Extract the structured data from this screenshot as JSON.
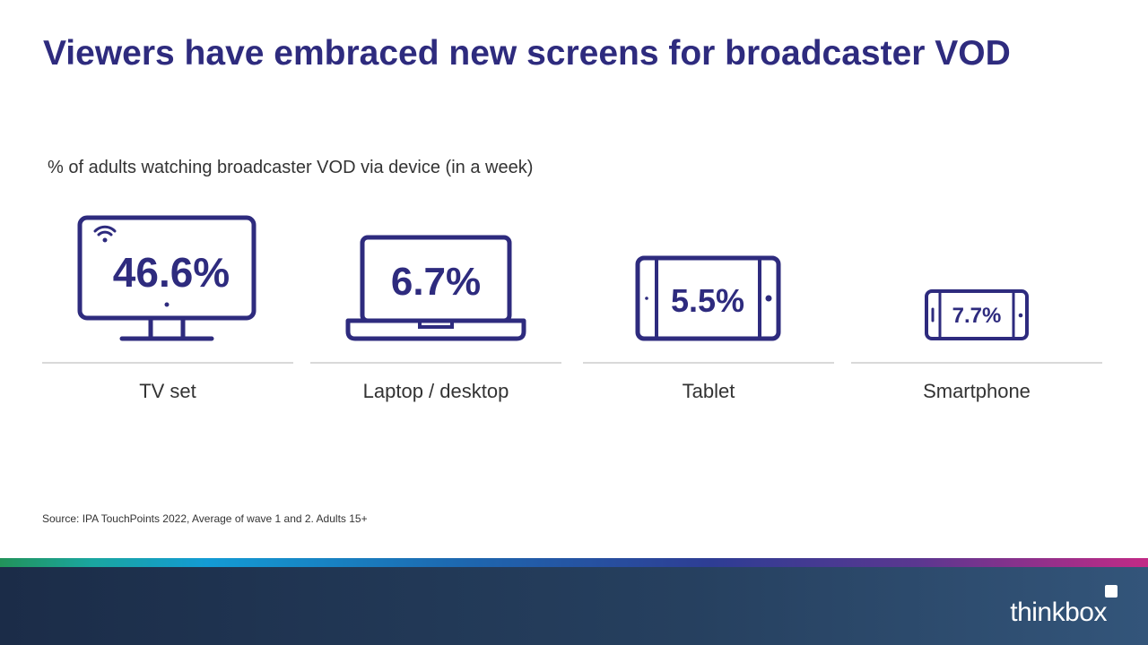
{
  "title": "Viewers have embraced new screens for broadcaster VOD",
  "subtitle": "% of adults watching broadcaster VOD via device (in a week)",
  "source": "Source: IPA TouchPoints 2022, Average of wave 1 and 2. Adults 15+",
  "logo": "thinkbox",
  "colors": {
    "accent": "#2e2b7e",
    "footer": "#1b2c48"
  },
  "chart_data": {
    "type": "table",
    "categories": [
      "TV set",
      "Laptop / desktop",
      "Tablet",
      "Smartphone"
    ],
    "values": [
      46.6,
      6.7,
      5.5,
      7.7
    ],
    "value_labels": [
      "46.6%",
      "6.7%",
      "5.5%",
      "7.7%"
    ],
    "icons": [
      "tv-icon",
      "laptop-icon",
      "tablet-icon",
      "smartphone-icon"
    ],
    "title": "Viewers have embraced new screens for broadcaster VOD",
    "subtitle": "% of adults watching broadcaster VOD via device (in a week)"
  }
}
